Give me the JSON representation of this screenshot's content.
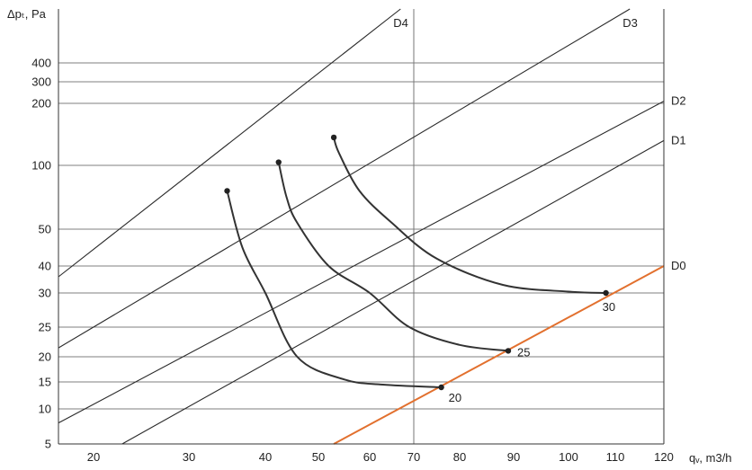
{
  "chart_data": {
    "type": "line",
    "title": "",
    "xlabel": "qᵥ, m3/h",
    "ylabel": "Δpₜ, Pa",
    "x_ticks": [
      20,
      30,
      40,
      50,
      60,
      70,
      80,
      90,
      100,
      110,
      120
    ],
    "y_ticks": [
      5,
      10,
      15,
      20,
      25,
      30,
      40,
      50,
      100,
      200,
      300,
      400
    ],
    "xlim": [
      15,
      120
    ],
    "ylim": [
      5,
      480
    ],
    "grid": "horizontal",
    "reference_x": 70,
    "system_lines": [
      {
        "name": "D4",
        "points": [
          [
            15,
            36
          ],
          [
            67,
            480
          ]
        ]
      },
      {
        "name": "D3",
        "points": [
          [
            15,
            21.5
          ],
          [
            113,
            480
          ]
        ]
      },
      {
        "name": "D2",
        "points": [
          [
            15,
            8
          ],
          [
            120,
            210
          ]
        ]
      },
      {
        "name": "D1",
        "points": [
          [
            23,
            5
          ],
          [
            120,
            140
          ]
        ]
      },
      {
        "name": "D0",
        "points": [
          [
            53,
            5
          ],
          [
            120,
            40
          ]
        ],
        "color": "#e2702e"
      }
    ],
    "curves": [
      {
        "label": "20",
        "points": [
          [
            35,
            80
          ],
          [
            37,
            45
          ],
          [
            40,
            30
          ],
          [
            46,
            20
          ],
          [
            55,
            15.5
          ],
          [
            63,
            14.5
          ],
          [
            76,
            14
          ]
        ]
      },
      {
        "label": "25",
        "points": [
          [
            42.5,
            105
          ],
          [
            44,
            75
          ],
          [
            46,
            55
          ],
          [
            52,
            40
          ],
          [
            60,
            30
          ],
          [
            69,
            25
          ],
          [
            80,
            22
          ],
          [
            89,
            21
          ]
        ]
      },
      {
        "label": "30",
        "points": [
          [
            53,
            145
          ],
          [
            54,
            120
          ],
          [
            58,
            80
          ],
          [
            65,
            55
          ],
          [
            75,
            42
          ],
          [
            88,
            33
          ],
          [
            100,
            30.5
          ],
          [
            108,
            30
          ]
        ]
      }
    ],
    "curve_color": "#333333",
    "line_color": "#2a2a2a",
    "grid_color": "#555555"
  }
}
